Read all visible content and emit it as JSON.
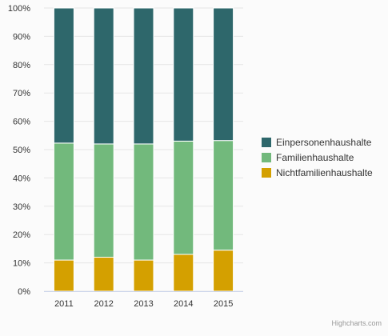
{
  "chart_data": {
    "type": "bar",
    "stacked": true,
    "stack_mode": "percent",
    "categories": [
      "2011",
      "2012",
      "2013",
      "2014",
      "2015"
    ],
    "series": [
      {
        "name": "Nichtfamilienhaushalte",
        "color": "#d4a000",
        "values": [
          11,
          12,
          11,
          13,
          14.5
        ]
      },
      {
        "name": "Familienhaushalte",
        "color": "#72b97c",
        "values": [
          41.3,
          40,
          41,
          40,
          38.7
        ]
      },
      {
        "name": "Einpersonenhaushalte",
        "color": "#2e676b",
        "values": [
          47.7,
          48,
          48,
          47,
          46.8
        ]
      }
    ],
    "legend_order": [
      "Einpersonenhaushalte",
      "Familienhaushalte",
      "Nichtfamilienhaushalte"
    ],
    "y_ticks": [
      "0%",
      "10%",
      "20%",
      "30%",
      "40%",
      "50%",
      "60%",
      "70%",
      "80%",
      "90%",
      "100%"
    ],
    "ylim": [
      0,
      100
    ],
    "legend_position": "right",
    "grid": true
  },
  "credits": "Highcharts.com"
}
